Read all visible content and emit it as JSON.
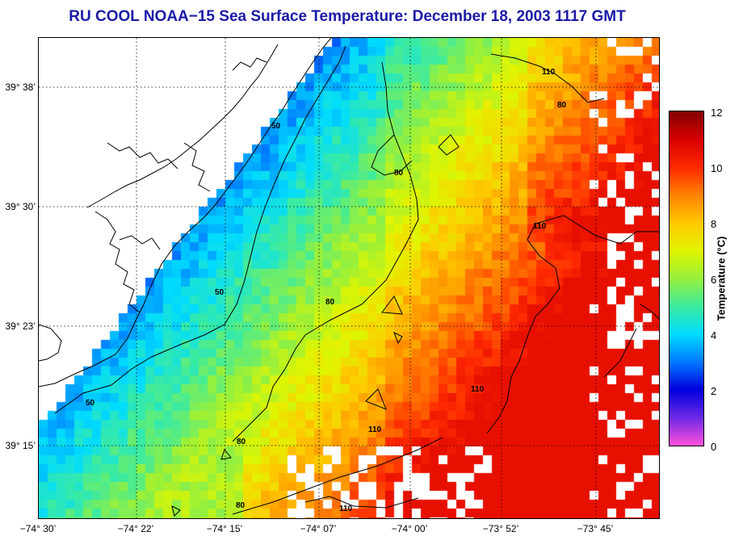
{
  "title": "RU COOL  NOAA−15  Sea Surface Temperature:  December 18, 2003 1117 GMT",
  "map": {
    "lat_labels": [
      "39° 38’",
      "39° 30’",
      "39° 23’",
      "39° 15’"
    ],
    "lon_labels": [
      "−74° 30’",
      "−74° 22’",
      "−74° 15’",
      "−74° 07’",
      "−74° 00’",
      "−73° 52’",
      "−73° 45’"
    ],
    "contour_labels": [
      "50",
      "50",
      "50",
      "80",
      "80",
      "80",
      "80",
      "80",
      "110",
      "110",
      "110",
      "110",
      "110"
    ]
  },
  "colorbar": {
    "label": "Temperature (°C)",
    "ticks": [
      "12",
      "10",
      "8",
      "6",
      "4",
      "2",
      "0"
    ],
    "min": 0,
    "max": 12
  },
  "colors": {
    "title": "#1a1aa6"
  }
}
